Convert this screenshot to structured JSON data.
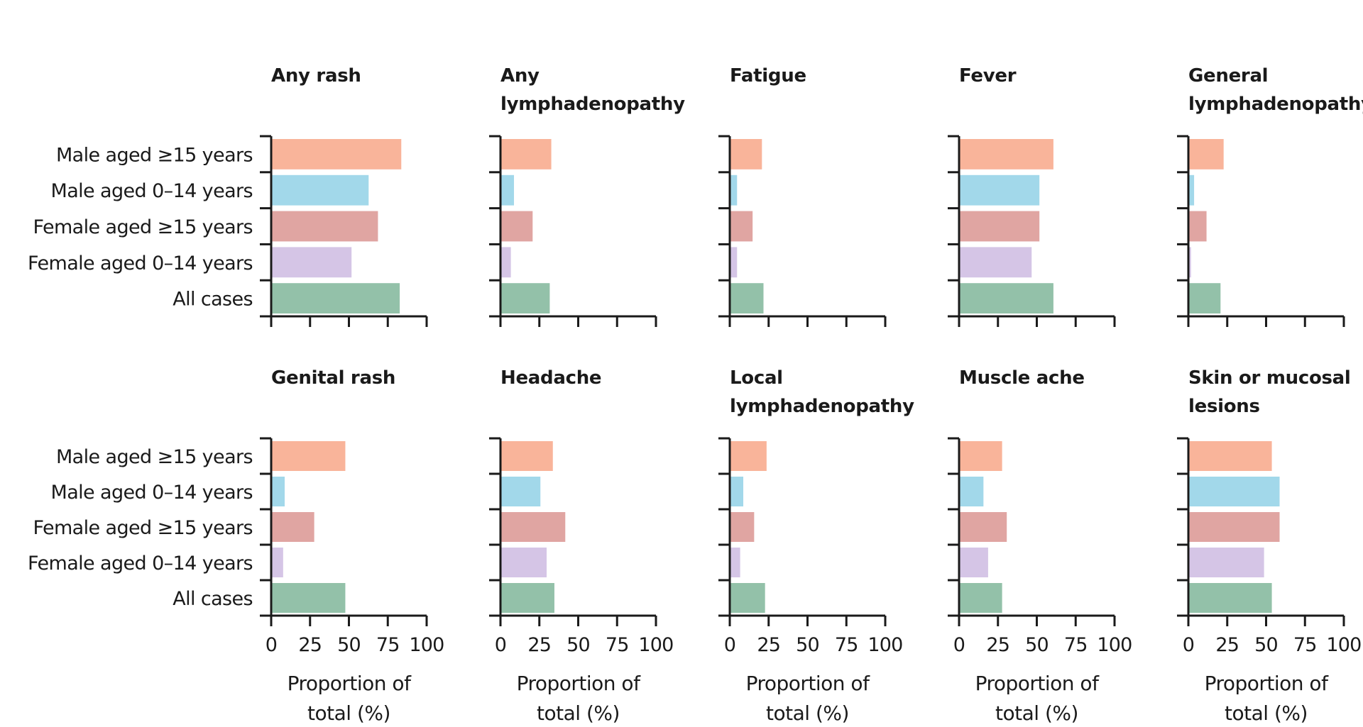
{
  "categories": [
    "Male aged ≥15 years",
    "Male aged 0–14 years",
    "Female aged ≥15 years",
    "Female aged 0–14 years",
    "All cases"
  ],
  "colors": [
    "#f9b49a",
    "#a2d8ea",
    "#e0a5a2",
    "#d5c5e6",
    "#93c1a9"
  ],
  "xlabel_line1": "Proportion of",
  "xlabel_line2": "total (%)",
  "xticks": [
    0,
    25,
    50,
    75,
    100
  ],
  "chart_data": [
    {
      "type": "bar",
      "title": [
        "Any rash"
      ],
      "values": [
        83,
        62,
        68,
        51,
        82
      ],
      "xlim": [
        0,
        100
      ]
    },
    {
      "type": "bar",
      "title": [
        "Any",
        "lymphadenopathy"
      ],
      "values": [
        32,
        8,
        20,
        6,
        31
      ],
      "xlim": [
        0,
        100
      ]
    },
    {
      "type": "bar",
      "title": [
        "Fatigue"
      ],
      "values": [
        20,
        4,
        14,
        4,
        21
      ],
      "xlim": [
        0,
        100
      ]
    },
    {
      "type": "bar",
      "title": [
        "Fever"
      ],
      "values": [
        60,
        51,
        51,
        46,
        60
      ],
      "xlim": [
        0,
        100
      ]
    },
    {
      "type": "bar",
      "title": [
        "General",
        "lymphadenopathy"
      ],
      "values": [
        22,
        3,
        11,
        1,
        20
      ],
      "xlim": [
        0,
        100
      ]
    },
    {
      "type": "bar",
      "title": [
        "Genital rash"
      ],
      "values": [
        47,
        8,
        27,
        7,
        47
      ],
      "xlim": [
        0,
        100
      ]
    },
    {
      "type": "bar",
      "title": [
        "Headache"
      ],
      "values": [
        33,
        25,
        41,
        29,
        34
      ],
      "xlim": [
        0,
        100
      ]
    },
    {
      "type": "bar",
      "title": [
        "Local",
        "lymphadenopathy"
      ],
      "values": [
        23,
        8,
        15,
        6,
        22
      ],
      "xlim": [
        0,
        100
      ]
    },
    {
      "type": "bar",
      "title": [
        "Muscle ache"
      ],
      "values": [
        27,
        15,
        30,
        18,
        27
      ],
      "xlim": [
        0,
        100
      ]
    },
    {
      "type": "bar",
      "title": [
        "Skin or mucosal",
        "lesions"
      ],
      "values": [
        53,
        58,
        58,
        48,
        53
      ],
      "xlim": [
        0,
        100
      ]
    }
  ]
}
